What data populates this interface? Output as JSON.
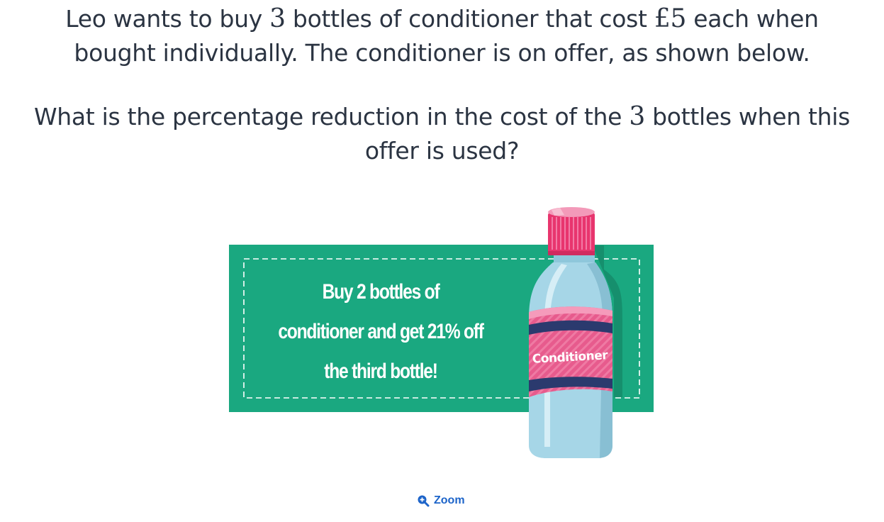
{
  "question": {
    "para1_line1_before": "Leo wants to buy ",
    "qty": "3",
    "para1_line1_middle": " bottles of conditioner that cost ",
    "price": "£5",
    "para1_line1_after": " each when",
    "para1_line2": "bought individually. The conditioner is on offer, as shown below.",
    "para2_line1_before": "What is the percentage reduction in the cost of the ",
    "qty2": "3",
    "para2_line1_after": " bottles when this",
    "para2_line2": "offer is used?"
  },
  "offer": {
    "line1": "Buy 2 bottles of",
    "line2": "conditioner and get 21% off",
    "line3": "the third bottle!"
  },
  "bottle": {
    "label": "Conditioner"
  },
  "zoom": {
    "label": "Zoom",
    "icon": "zoom-in-icon"
  },
  "colors": {
    "banner": "#1aa880",
    "cap": "#e8356e",
    "bottle": "#a6d6e7",
    "label": "#e75b8d",
    "link": "#1d64c9"
  }
}
